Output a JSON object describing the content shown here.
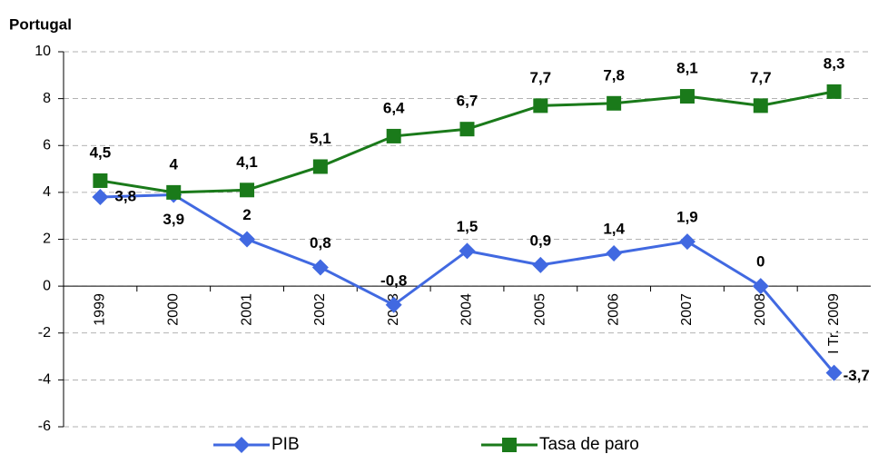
{
  "chart_data": {
    "type": "line",
    "title": "Portugal",
    "categories": [
      "1999",
      "2000",
      "2001",
      "2002",
      "2003",
      "2004",
      "2005",
      "2006",
      "2007",
      "2008",
      "I Tr. 2009"
    ],
    "series": [
      {
        "name": "PIB",
        "color": "#4169e1",
        "marker": "diamond",
        "values": [
          3.8,
          3.9,
          2,
          0.8,
          -0.8,
          1.5,
          0.9,
          1.4,
          1.9,
          0,
          -3.7
        ],
        "value_labels": [
          "3,8",
          "3,9",
          "2",
          "0,8",
          "-0,8",
          "1,5",
          "0,9",
          "1,4",
          "1,9",
          "0",
          "-3,7"
        ]
      },
      {
        "name": "Tasa de paro",
        "color": "#1a7a1a",
        "marker": "square",
        "values": [
          4.5,
          4,
          4.1,
          5.1,
          6.4,
          6.7,
          7.7,
          7.8,
          8.1,
          7.7,
          8.3
        ],
        "value_labels": [
          "4,5",
          "4",
          "4,1",
          "5,1",
          "6,4",
          "6,7",
          "7,7",
          "7,8",
          "8,1",
          "7,7",
          "8,3"
        ]
      }
    ],
    "ylim": [
      -6,
      10
    ],
    "yticks": [
      -6,
      -4,
      -2,
      0,
      2,
      4,
      6,
      8,
      10
    ],
    "grid": true
  }
}
